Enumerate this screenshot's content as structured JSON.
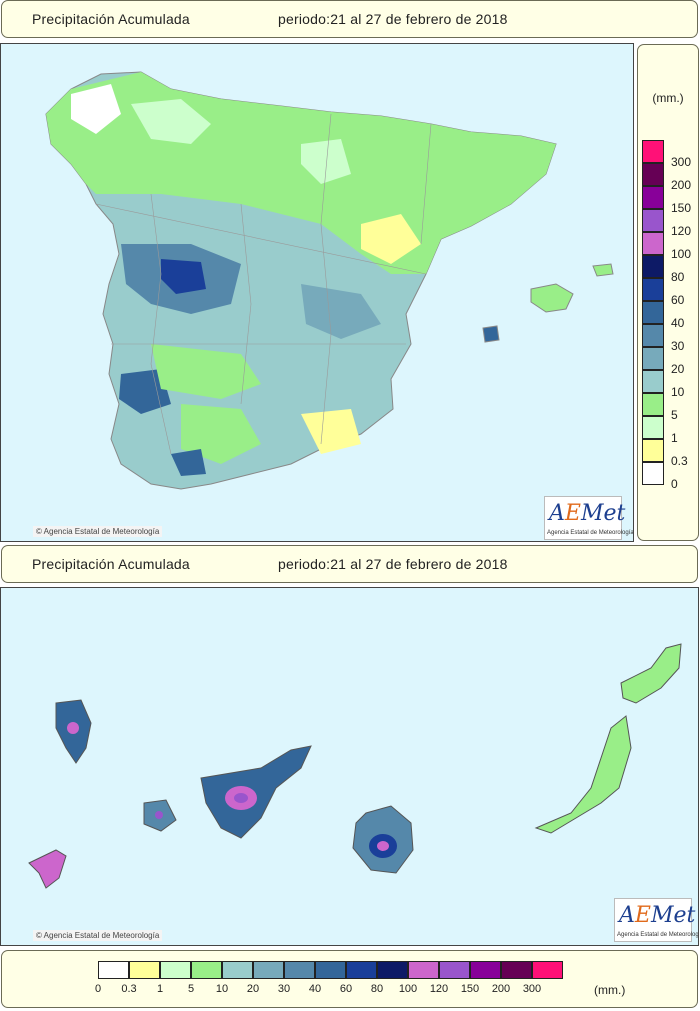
{
  "peninsula_header": {
    "title": "Precipitación Acumulada",
    "period": "periodo:21 al 27 de febrero de 2018"
  },
  "canarias_header": {
    "title": "Precipitación Acumulada",
    "period": "periodo:21 al 27 de febrero de 2018"
  },
  "legend": {
    "unit": "(mm.)",
    "thresholds": [
      "0",
      "0.3",
      "1",
      "5",
      "10",
      "20",
      "30",
      "40",
      "60",
      "80",
      "100",
      "120",
      "150",
      "200",
      "300"
    ],
    "colors": [
      "#ffffff",
      "#ffff99",
      "#ccffcc",
      "#99ee88",
      "#99cccc",
      "#77aabb",
      "#5588aa",
      "#336699",
      "#1a3f99",
      "#0d1a66",
      "#cc66cc",
      "#9955cc",
      "#880099",
      "#660055",
      "#ff1177"
    ]
  },
  "credits": {
    "copyright": "© Agencia Estatal de Meteorología",
    "logo_text": "AEMet",
    "logo_subtext": "Agencia Estatal de Meteorología"
  }
}
